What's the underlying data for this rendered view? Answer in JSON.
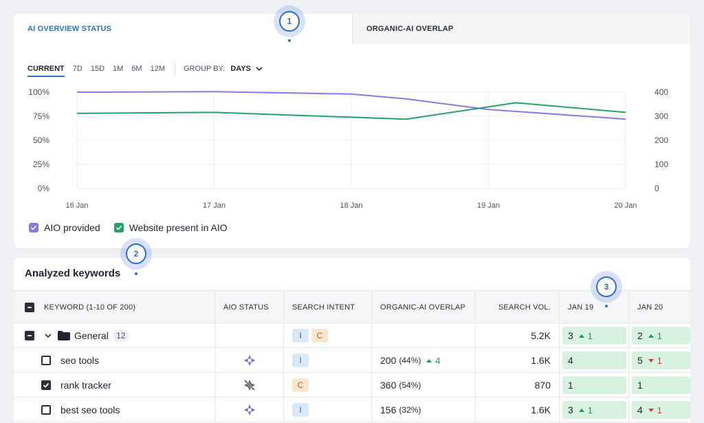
{
  "tabs": [
    {
      "label": "AI OVERVIEW STATUS",
      "active": true
    },
    {
      "label": "ORGANIC-AI OVERLAP",
      "active": false
    }
  ],
  "periods": [
    "CURRENT",
    "7D",
    "15D",
    "1M",
    "6M",
    "12M"
  ],
  "active_period": "CURRENT",
  "group_by": {
    "label": "GROUP BY:",
    "value": "DAYS"
  },
  "chart_data": {
    "type": "line",
    "x": [
      "16 Jan",
      "17 Jan",
      "18 Jan",
      "19 Jan",
      "20 Jan"
    ],
    "y_left_ticks": [
      "100%",
      "75%",
      "50%",
      "25%",
      "0%"
    ],
    "y_right_ticks": [
      "400",
      "300",
      "200",
      "100",
      "0"
    ],
    "ylim_left": [
      0,
      100
    ],
    "ylim_right": [
      0,
      400
    ],
    "grid": true,
    "series": [
      {
        "name": "AIO provided",
        "color": "#8b78e6",
        "axis": "left",
        "x": [
          0,
          1,
          2,
          2.4,
          3,
          4
        ],
        "values": [
          100,
          100.5,
          98,
          93,
          82,
          72
        ]
      },
      {
        "name": "Website present in AIO",
        "color": "#23a366",
        "axis": "left",
        "x": [
          0,
          1,
          2,
          2.4,
          3.2,
          4
        ],
        "values": [
          78,
          79,
          74,
          72,
          89,
          79
        ]
      }
    ]
  },
  "legend": [
    {
      "label": "AIO provided",
      "color": "#8b78e6"
    },
    {
      "label": "Website present in AIO",
      "color": "#23a366"
    }
  ],
  "callouts": [
    "1",
    "2",
    "3"
  ],
  "keywords": {
    "title": "Analyzed keywords",
    "columns": {
      "keyword": "KEYWORD (1-10 OF 200)",
      "aio_status": "AIO STATUS",
      "search_intent": "SEARCH INTENT",
      "overlap": "ORGANIC-AI OVERLAP",
      "volume": "SEARCH VOL.",
      "date1": "JAN 19",
      "date2": "JAN 20"
    },
    "group_row": {
      "name": "General",
      "count": "12",
      "intents": [
        "I",
        "C"
      ],
      "volume": "5.2K",
      "d1": {
        "pos": "3",
        "delta": "1",
        "dir": "up"
      },
      "d2": {
        "pos": "2",
        "delta": "1",
        "dir": "up"
      }
    },
    "rows": [
      {
        "keyword": "seo tools",
        "checked": false,
        "aio": "provided",
        "intent": "I",
        "overlap": "200",
        "overlap_pct": "(44%)",
        "overlap_delta": "4",
        "volume": "1.6K",
        "d1": {
          "pos": "4",
          "delta": "",
          "dir": ""
        },
        "d2": {
          "pos": "5",
          "delta": "1",
          "dir": "down"
        }
      },
      {
        "keyword": "rank tracker",
        "checked": true,
        "aio": "not-provided",
        "intent": "C",
        "overlap": "360",
        "overlap_pct": "(54%)",
        "overlap_delta": "",
        "volume": "870",
        "d1": {
          "pos": "1",
          "delta": "",
          "dir": ""
        },
        "d2": {
          "pos": "1",
          "delta": "",
          "dir": ""
        }
      },
      {
        "keyword": "best seo tools",
        "checked": false,
        "aio": "provided",
        "intent": "I",
        "overlap": "156",
        "overlap_pct": "(32%)",
        "overlap_delta": "",
        "volume": "1.6K",
        "d1": {
          "pos": "3",
          "delta": "1",
          "dir": "up"
        },
        "d2": {
          "pos": "4",
          "delta": "1",
          "dir": "down"
        }
      }
    ]
  }
}
